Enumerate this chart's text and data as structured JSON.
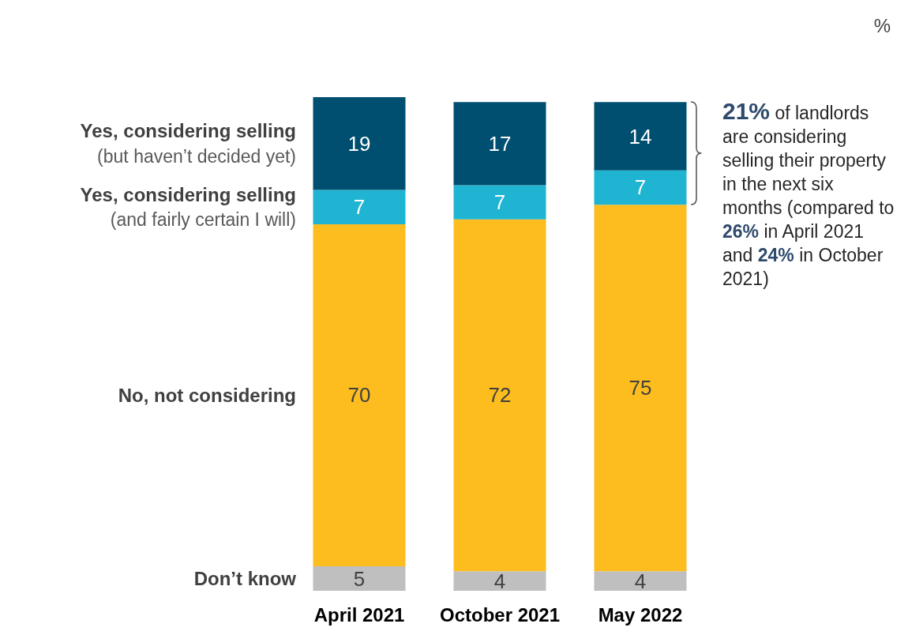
{
  "chart_data": {
    "type": "bar",
    "stacked": true,
    "data_labels": true,
    "legend": false,
    "categories": [
      "April 2021",
      "October 2021",
      "May 2022"
    ],
    "series": [
      {
        "name": "Don’t know",
        "color": "#bfbfbf",
        "values": [
          5,
          4,
          4
        ]
      },
      {
        "name": "No, not considering",
        "color": "#fdbd1e",
        "values": [
          70,
          72,
          75
        ]
      },
      {
        "name": "Yes, considering selling (and fairly certain I will)",
        "color": "#1fb5d2",
        "values": [
          7,
          7,
          7
        ]
      },
      {
        "name": "Yes, considering selling (but haven’t decided yet)",
        "color": "#004f71",
        "values": [
          19,
          17,
          14
        ]
      }
    ],
    "annotations": [
      "%",
      "21% of landlords are considering selling their property in the next six months (compared to 26% in April 2021 and 24% in October 2021)"
    ]
  }
}
